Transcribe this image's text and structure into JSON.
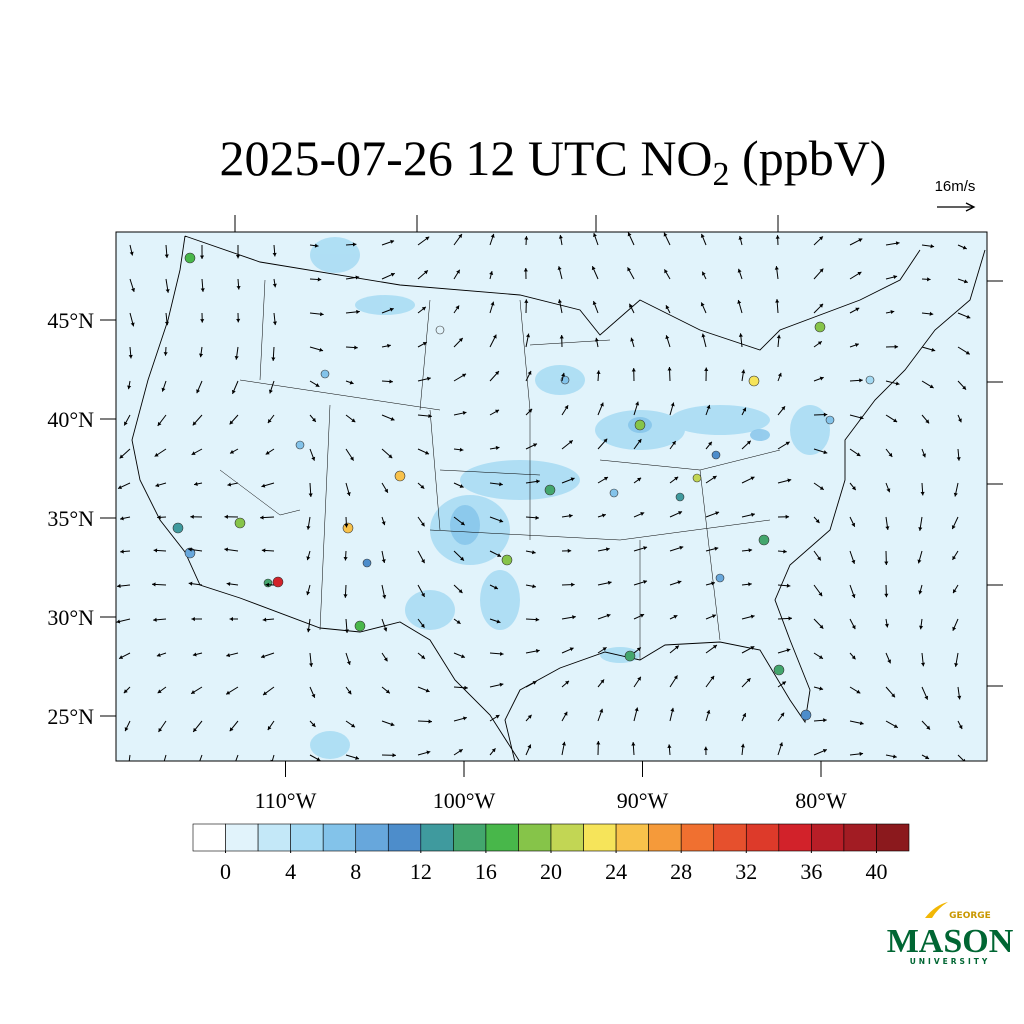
{
  "header": {
    "title": {
      "main": "2025-07-26 12 UTC NO",
      "sub": "2",
      "tail": " (ppbV)"
    },
    "wind_reference": "16m/s"
  },
  "map": {
    "lat_ticks": [
      {
        "value": 45,
        "label": "45°N"
      },
      {
        "value": 40,
        "label": "40°N"
      },
      {
        "value": 35,
        "label": "35°N"
      },
      {
        "value": 30,
        "label": "30°N"
      },
      {
        "value": 25,
        "label": "25°N"
      }
    ],
    "lon_ticks": [
      {
        "value": -110,
        "label": "110°W"
      },
      {
        "value": -100,
        "label": "100°W"
      },
      {
        "value": -90,
        "label": "90°W"
      },
      {
        "value": -80,
        "label": "80°W"
      }
    ]
  },
  "colorbar": {
    "lim": [
      -2,
      42
    ],
    "ticks": [
      0,
      4,
      8,
      12,
      16,
      20,
      24,
      28,
      32,
      36,
      40
    ],
    "colors": [
      "#ffffff",
      "#e1f3fb",
      "#c4e8f8",
      "#a3d9f3",
      "#83c3ea",
      "#67a7dc",
      "#4d8dcb",
      "#3f9a9e",
      "#43a66d",
      "#48b74a",
      "#86c449",
      "#c2d654",
      "#f6e45a",
      "#f8c24b",
      "#f59a3a",
      "#f07030",
      "#e6502d",
      "#dd3a2a",
      "#d2222a",
      "#b81e27",
      "#a21c23",
      "#8b191d"
    ]
  },
  "logo": {
    "top": "GEORGE",
    "main": "MASON",
    "bottom": "UNIVERSITY"
  }
}
